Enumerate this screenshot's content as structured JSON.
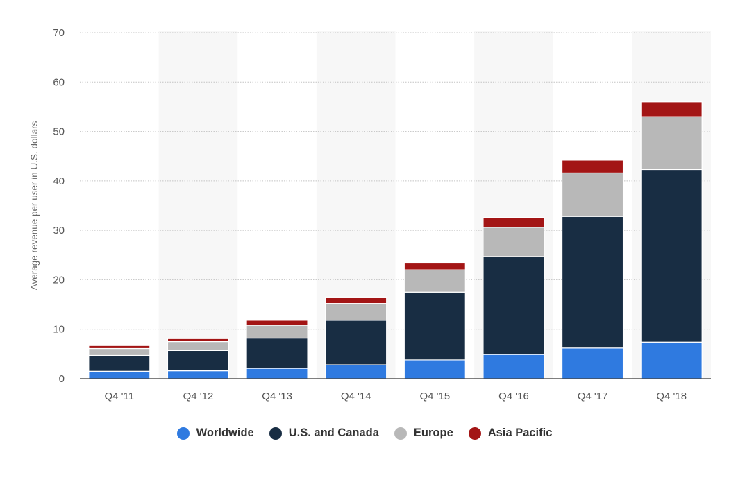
{
  "chart_data": {
    "type": "bar",
    "stacked": true,
    "ylabel": "Average revenue per user in U.S. dollars",
    "ylim": [
      0,
      70
    ],
    "yticks": [
      0,
      10,
      20,
      30,
      40,
      50,
      60,
      70
    ],
    "grid": true,
    "legend_position": "bottom",
    "categories": [
      "Q4 '11",
      "Q4 '12",
      "Q4 '13",
      "Q4 '14",
      "Q4 '15",
      "Q4 '16",
      "Q4 '17",
      "Q4 '18"
    ],
    "series": [
      {
        "name": "Worldwide",
        "color": "#2f7ae0",
        "values": [
          1.5,
          1.6,
          2.1,
          2.8,
          3.8,
          4.9,
          6.2,
          7.4
        ]
      },
      {
        "name": "U.S. and Canada",
        "color": "#182d43",
        "values": [
          3.2,
          4.1,
          6.1,
          9.0,
          13.7,
          19.8,
          26.6,
          34.9
        ]
      },
      {
        "name": "Europe",
        "color": "#b8b8b8",
        "values": [
          1.4,
          1.8,
          2.6,
          3.4,
          4.5,
          5.9,
          8.8,
          10.7
        ]
      },
      {
        "name": "Asia Pacific",
        "color": "#a31515",
        "values": [
          0.6,
          0.6,
          1.0,
          1.3,
          1.5,
          2.0,
          2.6,
          3.0
        ]
      }
    ]
  }
}
